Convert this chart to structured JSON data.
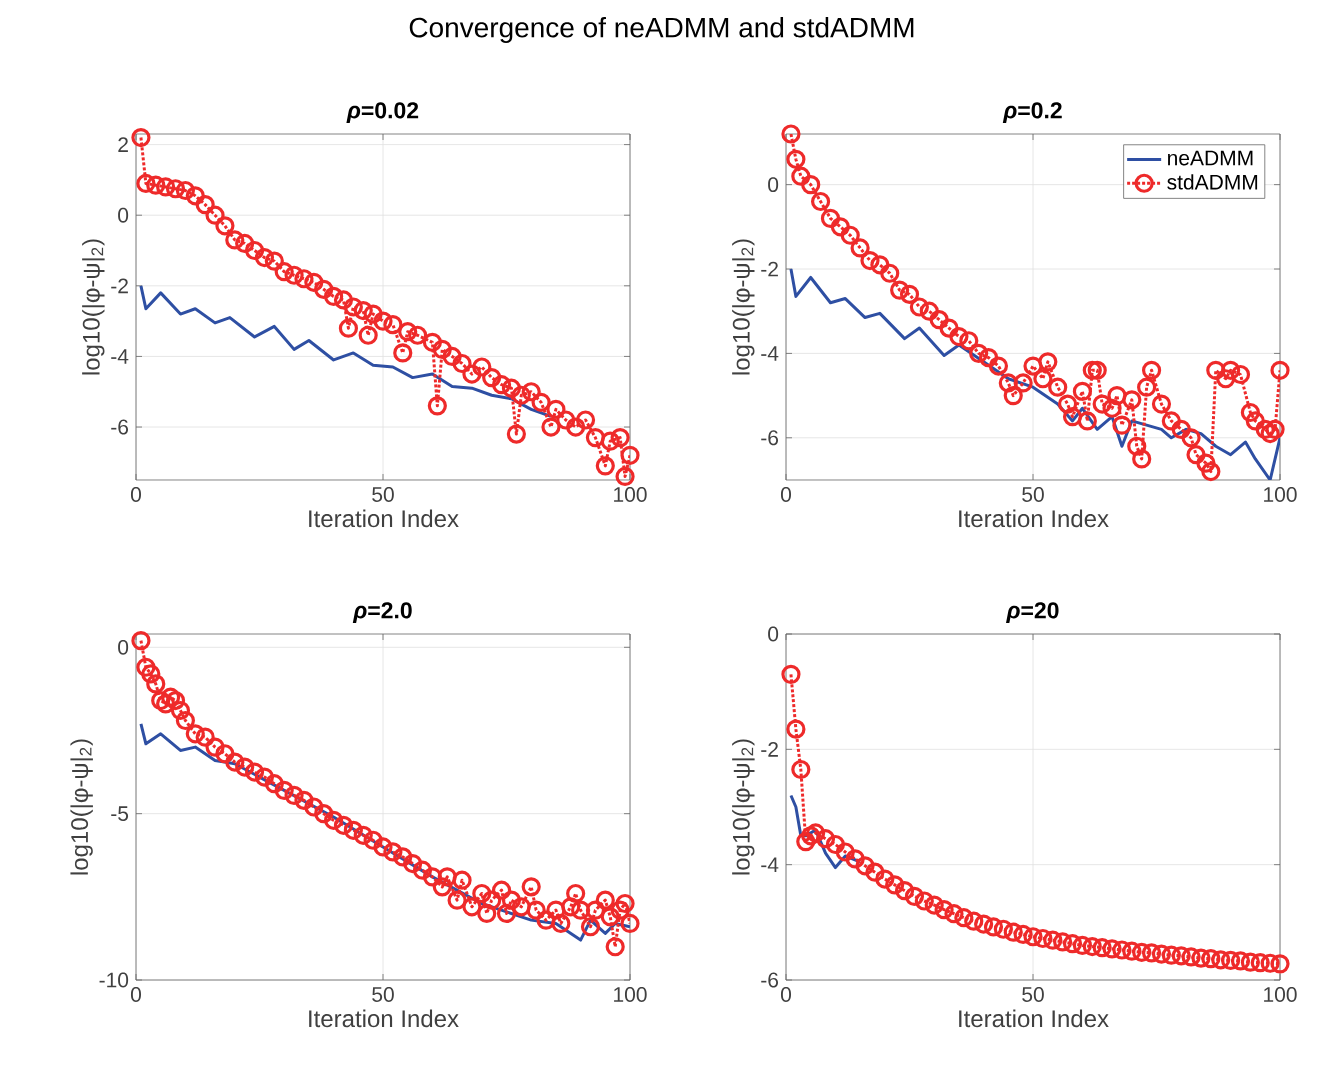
{
  "chart_data": [
    {
      "type": "other",
      "title": "Convergence of neADMM and stdADMM"
    },
    {
      "type": "line",
      "title": "*ρ*=0.02",
      "xlabel": "Iteration Index",
      "ylabel": "log10(|φ-ψ|$_{2}$)",
      "xlim": [
        0,
        100
      ],
      "xticks": [
        0,
        50,
        100
      ],
      "ylim": [
        -7.5,
        2.3
      ],
      "yticks": [
        -6,
        -4,
        -2,
        0,
        2
      ],
      "grid": true,
      "legend": false,
      "series": [
        {
          "color": "#2e4fa3",
          "line_style": "solid",
          "marker": "none",
          "x": [
            1,
            2,
            5,
            9,
            12,
            16,
            19,
            24,
            28,
            32,
            35,
            40,
            44,
            48,
            52,
            56,
            60,
            64,
            68,
            72,
            76,
            80,
            84
          ],
          "values": [
            -2.0,
            -2.65,
            -2.2,
            -2.8,
            -2.65,
            -3.05,
            -2.9,
            -3.45,
            -3.15,
            -3.8,
            -3.55,
            -4.1,
            -3.9,
            -4.25,
            -4.3,
            -4.6,
            -4.5,
            -4.85,
            -4.9,
            -5.1,
            -5.2,
            -5.5,
            -5.7
          ]
        },
        {
          "color": "#ee2a2a",
          "line_style": "dotted",
          "marker": "circle",
          "x": [
            1,
            2,
            4,
            6,
            8,
            10,
            12,
            14,
            16,
            18,
            20,
            22,
            24,
            26,
            28,
            30,
            32,
            34,
            36,
            38,
            40,
            42,
            43,
            44,
            46,
            47,
            48,
            50,
            52,
            54,
            55,
            57,
            60,
            61,
            62,
            64,
            66,
            68,
            70,
            72,
            74,
            76,
            77,
            78,
            80,
            82,
            84,
            85,
            87,
            89,
            91,
            93,
            95,
            96,
            98,
            99,
            100
          ],
          "values": [
            2.2,
            0.9,
            0.85,
            0.8,
            0.75,
            0.7,
            0.55,
            0.3,
            0.0,
            -0.3,
            -0.7,
            -0.8,
            -1.0,
            -1.2,
            -1.3,
            -1.6,
            -1.7,
            -1.8,
            -1.9,
            -2.1,
            -2.3,
            -2.4,
            -3.2,
            -2.6,
            -2.7,
            -3.4,
            -2.8,
            -3.0,
            -3.1,
            -3.9,
            -3.3,
            -3.4,
            -3.6,
            -5.4,
            -3.8,
            -4.0,
            -4.2,
            -4.5,
            -4.3,
            -4.6,
            -4.8,
            -4.9,
            -6.2,
            -5.1,
            -5.0,
            -5.3,
            -6.0,
            -5.5,
            -5.8,
            -6.0,
            -5.8,
            -6.3,
            -7.1,
            -6.4,
            -6.3,
            -7.4,
            -6.8
          ]
        }
      ]
    },
    {
      "type": "line",
      "title": "*ρ*=0.2",
      "xlabel": "Iteration Index",
      "ylabel": "log10(|φ-ψ|$_{2}$)",
      "xlim": [
        0,
        100
      ],
      "xticks": [
        0,
        50,
        100
      ],
      "ylim": [
        -7,
        1.2
      ],
      "yticks": [
        -6,
        -4,
        -2,
        0
      ],
      "grid": true,
      "legend": "top right",
      "series": [
        {
          "name": "neADMM",
          "color": "#2e4fa3",
          "line_style": "solid",
          "marker": "none",
          "x": [
            1,
            2,
            5,
            9,
            12,
            16,
            19,
            24,
            27,
            32,
            35,
            40,
            45,
            50,
            55,
            58,
            60,
            63,
            66,
            68,
            70,
            73,
            76,
            78,
            81,
            84,
            87,
            90,
            93,
            95,
            98,
            100
          ],
          "values": [
            -2.0,
            -2.65,
            -2.2,
            -2.8,
            -2.7,
            -3.15,
            -3.05,
            -3.65,
            -3.4,
            -4.05,
            -3.8,
            -4.2,
            -4.6,
            -4.8,
            -5.2,
            -5.6,
            -5.3,
            -5.8,
            -5.5,
            -6.2,
            -5.6,
            -5.7,
            -5.8,
            -6.0,
            -5.8,
            -5.9,
            -6.2,
            -6.4,
            -6.1,
            -6.5,
            -7.0,
            -6.0
          ]
        },
        {
          "name": "stdADMM",
          "color": "#ee2a2a",
          "line_style": "dotted",
          "marker": "circle",
          "x": [
            1,
            2,
            3,
            5,
            7,
            9,
            11,
            13,
            15,
            17,
            19,
            21,
            23,
            25,
            27,
            29,
            31,
            33,
            35,
            37,
            39,
            41,
            43,
            45,
            46,
            48,
            50,
            52,
            53,
            55,
            57,
            58,
            60,
            61,
            62,
            63,
            64,
            66,
            67,
            68,
            70,
            71,
            72,
            73,
            74,
            76,
            78,
            80,
            82,
            83,
            85,
            86,
            87,
            89,
            90,
            92,
            94,
            95,
            97,
            98,
            99,
            100
          ],
          "values": [
            1.2,
            0.6,
            0.2,
            0.0,
            -0.4,
            -0.8,
            -1.0,
            -1.2,
            -1.5,
            -1.8,
            -1.9,
            -2.1,
            -2.5,
            -2.6,
            -2.9,
            -3.0,
            -3.2,
            -3.4,
            -3.6,
            -3.7,
            -4.0,
            -4.1,
            -4.3,
            -4.7,
            -5.0,
            -4.7,
            -4.3,
            -4.6,
            -4.2,
            -4.8,
            -5.2,
            -5.5,
            -4.9,
            -5.6,
            -4.4,
            -4.4,
            -5.2,
            -5.3,
            -5.0,
            -5.7,
            -5.1,
            -6.2,
            -6.5,
            -4.8,
            -4.4,
            -5.2,
            -5.6,
            -5.8,
            -6.0,
            -6.4,
            -6.6,
            -6.8,
            -4.4,
            -4.6,
            -4.4,
            -4.5,
            -5.4,
            -5.6,
            -5.8,
            -5.9,
            -5.8,
            -4.4
          ]
        }
      ]
    },
    {
      "type": "line",
      "title": "*ρ*=2.0",
      "xlabel": "Iteration Index",
      "ylabel": "log10(|φ-ψ|$_{2}$)",
      "xlim": [
        0,
        100
      ],
      "xticks": [
        0,
        50,
        100
      ],
      "ylim": [
        -10,
        0.4
      ],
      "yticks": [
        -10,
        -5,
        0
      ],
      "grid": true,
      "legend": false,
      "series": [
        {
          "color": "#2e4fa3",
          "line_style": "solid",
          "marker": "none",
          "x": [
            1,
            2,
            5,
            9,
            12,
            16,
            20,
            25,
            30,
            40,
            50,
            60,
            70,
            80,
            85,
            90,
            92,
            95,
            97,
            100
          ],
          "values": [
            -2.3,
            -2.9,
            -2.6,
            -3.1,
            -3.0,
            -3.4,
            -3.5,
            -3.9,
            -4.3,
            -5.1,
            -6.0,
            -6.9,
            -7.7,
            -8.2,
            -8.3,
            -8.8,
            -8.2,
            -8.6,
            -8.3,
            -8.4
          ]
        },
        {
          "color": "#ee2a2a",
          "line_style": "dotted",
          "marker": "circle",
          "x": [
            1,
            2,
            3,
            4,
            5,
            6,
            7,
            8,
            9,
            10,
            12,
            14,
            16,
            18,
            20,
            22,
            24,
            26,
            28,
            30,
            32,
            34,
            36,
            38,
            40,
            42,
            44,
            46,
            48,
            50,
            52,
            54,
            56,
            58,
            60,
            62,
            63,
            65,
            66,
            68,
            70,
            71,
            72,
            74,
            75,
            76,
            78,
            80,
            81,
            83,
            85,
            86,
            88,
            89,
            90,
            92,
            93,
            95,
            96,
            97,
            98,
            99,
            100
          ],
          "values": [
            0.2,
            -0.6,
            -0.8,
            -1.1,
            -1.6,
            -1.7,
            -1.5,
            -1.6,
            -1.9,
            -2.2,
            -2.6,
            -2.7,
            -3.0,
            -3.2,
            -3.45,
            -3.6,
            -3.75,
            -3.9,
            -4.1,
            -4.3,
            -4.45,
            -4.6,
            -4.8,
            -5.0,
            -5.2,
            -5.35,
            -5.5,
            -5.65,
            -5.8,
            -6.0,
            -6.15,
            -6.3,
            -6.5,
            -6.7,
            -6.9,
            -7.2,
            -6.9,
            -7.6,
            -7.0,
            -7.8,
            -7.4,
            -8.0,
            -7.6,
            -7.3,
            -8.0,
            -7.6,
            -7.8,
            -7.2,
            -7.9,
            -8.2,
            -7.9,
            -8.3,
            -7.8,
            -7.4,
            -7.9,
            -8.4,
            -7.9,
            -7.6,
            -8.1,
            -9.0,
            -7.9,
            -7.7,
            -8.3
          ]
        }
      ]
    },
    {
      "type": "line",
      "title": "*ρ*=20",
      "xlabel": "Iteration Index",
      "ylabel": "log10(|φ-ψ|$_{2}$)",
      "xlim": [
        0,
        100
      ],
      "xticks": [
        0,
        50,
        100
      ],
      "ylim": [
        -6,
        0
      ],
      "yticks": [
        -6,
        -4,
        -2,
        0
      ],
      "grid": true,
      "legend": false,
      "series": [
        {
          "color": "#2e4fa3",
          "line_style": "solid",
          "marker": "none",
          "x": [
            1,
            2,
            3,
            4,
            6,
            8,
            10,
            12,
            15
          ],
          "values": [
            -2.8,
            -3.0,
            -3.5,
            -3.5,
            -3.4,
            -3.8,
            -4.05,
            -3.85,
            -3.95
          ]
        },
        {
          "color": "#ee2a2a",
          "line_style": "dotted",
          "marker": "circle",
          "x": [
            1,
            2,
            3,
            4,
            5,
            6,
            8,
            10,
            12,
            14,
            16,
            18,
            20,
            22,
            24,
            26,
            28,
            30,
            32,
            34,
            36,
            38,
            40,
            42,
            44,
            46,
            48,
            50,
            52,
            54,
            56,
            58,
            60,
            62,
            64,
            66,
            68,
            70,
            72,
            74,
            76,
            78,
            80,
            82,
            84,
            86,
            88,
            90,
            92,
            94,
            96,
            98,
            100
          ],
          "values": [
            -0.7,
            -1.65,
            -2.35,
            -3.6,
            -3.5,
            -3.45,
            -3.55,
            -3.65,
            -3.78,
            -3.9,
            -4.02,
            -4.13,
            -4.25,
            -4.35,
            -4.45,
            -4.55,
            -4.63,
            -4.7,
            -4.78,
            -4.85,
            -4.92,
            -4.98,
            -5.03,
            -5.08,
            -5.12,
            -5.17,
            -5.21,
            -5.25,
            -5.28,
            -5.31,
            -5.34,
            -5.37,
            -5.4,
            -5.42,
            -5.44,
            -5.46,
            -5.48,
            -5.5,
            -5.52,
            -5.53,
            -5.55,
            -5.57,
            -5.58,
            -5.6,
            -5.62,
            -5.63,
            -5.65,
            -5.66,
            -5.67,
            -5.69,
            -5.7,
            -5.71,
            -5.72
          ]
        }
      ]
    }
  ]
}
